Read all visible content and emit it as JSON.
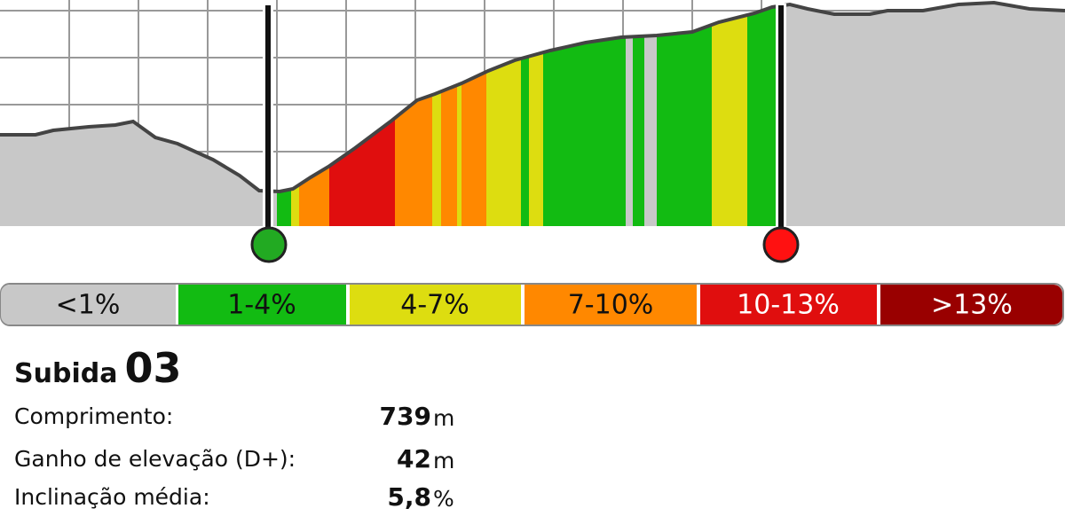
{
  "legend": [
    "<1%",
    "1-4%",
    "4-7%",
    "7-10%",
    "10-13%",
    ">13%"
  ],
  "climb": {
    "label": "Subida",
    "number": "03"
  },
  "stats": [
    {
      "label": "Comprimento:",
      "value": "739",
      "unit": "m"
    },
    {
      "label": "Ganho de elevação (D+):",
      "value": "42",
      "unit": "m"
    },
    {
      "label": "Inclinação média:",
      "value": "5,8",
      "unit": "%"
    }
  ]
}
